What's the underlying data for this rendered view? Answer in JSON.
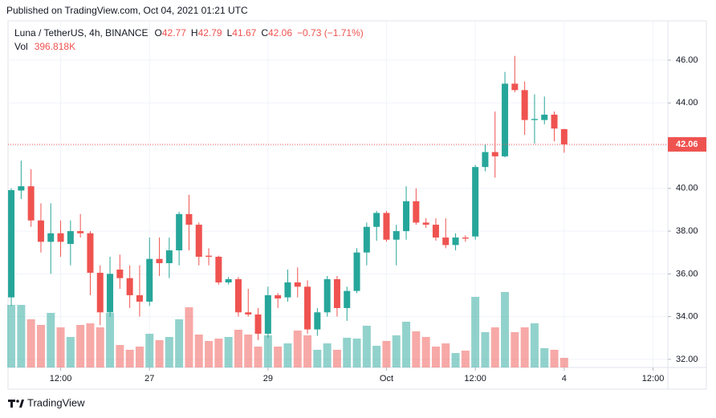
{
  "published": "Published on TradingView.com, Oct 04, 2021 01:21 UTC",
  "brand": "TradingView",
  "chart_data": {
    "type": "candlestick",
    "title": "Luna / TetherUS, 4h, BINANCE",
    "ohlc_labels": [
      "O",
      "H",
      "L",
      "C"
    ],
    "change_label": "−0.73 (−1.71%)",
    "volume_name": "Vol",
    "last_volume_label": "396.818K",
    "up_color": "#26a69a",
    "down_color": "#ef5350",
    "open": [
      34.9,
      39.9,
      40.1,
      38.5,
      37.5,
      37.9,
      37.4,
      38.0,
      37.9,
      36.05,
      34.2,
      36.2,
      35.8,
      35.0,
      34.7,
      36.7,
      36.5,
      37.1,
      38.8,
      38.3,
      36.85,
      36.8,
      35.6,
      35.75,
      34.2,
      34.1,
      33.2,
      35.0,
      34.9,
      35.6,
      35.4,
      33.4,
      34.2,
      35.75,
      34.4,
      35.2,
      37.0,
      38.2,
      38.85,
      37.6,
      38.0,
      39.4,
      38.4,
      38.3,
      37.7,
      37.35,
      37.7,
      37.75,
      41.0,
      41.7,
      41.5,
      44.9,
      44.6,
      43.2,
      43.2,
      43.45,
      42.77
    ],
    "high": [
      40.0,
      41.3,
      40.9,
      39.3,
      39.3,
      38.5,
      38.5,
      38.8,
      38.0,
      36.4,
      36.8,
      36.9,
      36.4,
      36.4,
      37.7,
      37.7,
      37.7,
      38.9,
      39.7,
      38.4,
      37.2,
      36.85,
      35.85,
      35.85,
      35.3,
      34.4,
      35.4,
      35.1,
      36.2,
      36.3,
      35.7,
      34.4,
      35.9,
      35.9,
      35.4,
      37.2,
      38.4,
      38.95,
      38.95,
      38.3,
      40.1,
      40.0,
      38.6,
      38.6,
      38.6,
      37.9,
      37.8,
      41.1,
      42.05,
      43.6,
      45.45,
      46.2,
      45.0,
      44.4,
      44.3,
      43.6,
      42.79
    ],
    "low": [
      34.5,
      39.5,
      38.2,
      37.0,
      36.0,
      36.8,
      36.4,
      37.7,
      35.0,
      33.6,
      34.0,
      35.3,
      34.4,
      34.0,
      34.5,
      35.9,
      35.8,
      36.4,
      37.1,
      36.4,
      36.4,
      35.5,
      35.5,
      34.0,
      34.0,
      32.9,
      33.0,
      34.4,
      34.7,
      34.9,
      33.2,
      33.1,
      34.0,
      34.0,
      33.8,
      35.1,
      36.4,
      37.55,
      37.5,
      36.4,
      37.6,
      38.3,
      38.15,
      37.55,
      37.2,
      37.1,
      37.5,
      37.6,
      40.8,
      40.5,
      41.45,
      44.5,
      42.5,
      42.1,
      43.0,
      42.2,
      41.67
    ],
    "close": [
      39.92,
      40.1,
      38.5,
      37.5,
      37.9,
      37.5,
      38.0,
      37.9,
      36.05,
      34.2,
      36.0,
      35.8,
      35.0,
      34.7,
      36.7,
      36.5,
      37.1,
      38.8,
      38.3,
      36.8,
      36.8,
      35.6,
      35.75,
      34.2,
      34.1,
      33.2,
      35.0,
      34.85,
      35.6,
      35.4,
      33.4,
      34.2,
      35.75,
      34.4,
      35.2,
      37.0,
      38.2,
      38.85,
      37.6,
      38.0,
      39.4,
      38.4,
      38.3,
      37.7,
      37.35,
      37.7,
      37.65,
      41.0,
      41.7,
      41.5,
      44.9,
      44.6,
      43.2,
      43.25,
      43.45,
      42.8,
      42.06
    ],
    "volume": [
      2579000,
      2579000,
      1984000,
      1753000,
      2249000,
      1653000,
      1257000,
      1753000,
      1819000,
      1653000,
      2249000,
      926000,
      728000,
      860000,
      1389000,
      1124000,
      1257000,
      1984000,
      2480000,
      1356000,
      1091000,
      1190000,
      1257000,
      1554000,
      1356000,
      860000,
      1323000,
      860000,
      992000,
      1521000,
      1323000,
      728000,
      992000,
      728000,
      1224000,
      1190000,
      1720000,
      893000,
      1091000,
      1323000,
      1885000,
      1488000,
      1257000,
      860000,
      992000,
      595000,
      694000,
      2910000,
      1455000,
      1653000,
      3108000,
      1455000,
      1653000,
      1819000,
      794000,
      728000,
      396818
    ],
    "xlim": [
      -0.33,
      66.5
    ],
    "xticks": [
      {
        "value": 5,
        "label": "12:00"
      },
      {
        "value": 14,
        "label": "27"
      },
      {
        "value": 26,
        "label": "29"
      },
      {
        "value": 38,
        "label": "Oct"
      },
      {
        "value": 47,
        "label": "12:00"
      },
      {
        "value": 56,
        "label": "4"
      },
      {
        "value": 65,
        "label": "12:00"
      }
    ],
    "ylim": [
      31.62,
      47.84
    ],
    "yticks": [
      {
        "value": 32,
        "label": "32.00"
      },
      {
        "value": 34,
        "label": "34.00"
      },
      {
        "value": 36,
        "label": "36.00"
      },
      {
        "value": 38,
        "label": "38.00"
      },
      {
        "value": 40,
        "label": "40.00"
      },
      {
        "value": 42,
        "label": "42.00"
      },
      {
        "value": 44,
        "label": "44.00"
      },
      {
        "value": 46,
        "label": "46.00"
      }
    ],
    "grid": true
  }
}
